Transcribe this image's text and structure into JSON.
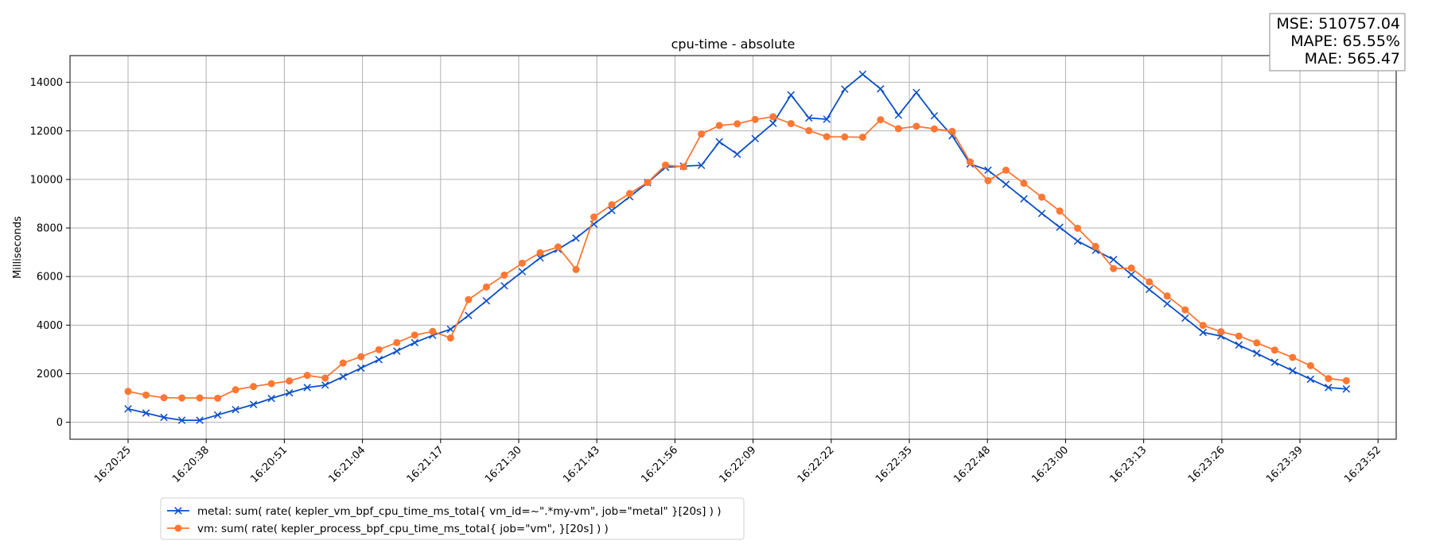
{
  "chart_data": {
    "type": "line",
    "title": "cpu-time - absolute",
    "xlabel": "",
    "ylabel": "Milliseconds",
    "ylim": [
      -700,
      15100
    ],
    "yticks": [
      0,
      2000,
      4000,
      6000,
      8000,
      10000,
      12000,
      14000
    ],
    "xtick_labels": [
      "16:20:25",
      "16:20:38",
      "16:20:51",
      "16:21:04",
      "16:21:17",
      "16:21:30",
      "16:21:43",
      "16:21:56",
      "16:22:09",
      "16:22:22",
      "16:22:35",
      "16:22:48",
      "16:23:00",
      "16:23:13",
      "16:23:26",
      "16:23:39",
      "16:23:52"
    ],
    "grid": true,
    "legend_position": "bottom-left",
    "metrics_box": [
      "MSE: 510757.04",
      "MAPE: 65.55%",
      "MAE: 565.47"
    ],
    "series": [
      {
        "name": "metal: sum( rate( kepler_vm_bpf_cpu_time_ms_total{ vm_id=~\".*my-vm\", job=\"metal\" }[20s] ) )",
        "color": "#0b4fc6",
        "marker": "x",
        "values": [
          550,
          380,
          200,
          80,
          80,
          300,
          520,
          730,
          980,
          1210,
          1430,
          1530,
          1880,
          2230,
          2580,
          2930,
          3280,
          3580,
          3830,
          4400,
          5000,
          5620,
          6200,
          6770,
          7120,
          7580,
          8160,
          8720,
          9290,
          9870,
          10500,
          10550,
          10580,
          11550,
          11040,
          11680,
          12310,
          13480,
          12530,
          12480,
          13720,
          14330,
          13730,
          12650,
          13580,
          12620,
          11800,
          10640,
          10380,
          9800,
          9200,
          8600,
          8030,
          7460,
          7080,
          6700,
          6080,
          5470,
          4880,
          4290,
          3700,
          3550,
          3180,
          2840,
          2470,
          2120,
          1770,
          1430,
          1370
        ]
      },
      {
        "name": "vm: sum( rate( kepler_process_bpf_cpu_time_ms_total{ job=\"vm\", }[20s] ) )",
        "color": "#ff7733",
        "marker": "o",
        "values": [
          1270,
          1120,
          1010,
          1000,
          1000,
          990,
          1340,
          1470,
          1590,
          1700,
          1930,
          1820,
          2440,
          2700,
          2990,
          3280,
          3590,
          3740,
          3470,
          5050,
          5570,
          6060,
          6550,
          6980,
          7220,
          6290,
          8450,
          8960,
          9420,
          9880,
          10590,
          10520,
          11870,
          12220,
          12290,
          12470,
          12580,
          12300,
          12010,
          11760,
          11750,
          11740,
          12460,
          12090,
          12190,
          12080,
          11980,
          10720,
          9950,
          10380,
          9840,
          9270,
          8700,
          7990,
          7240,
          6330,
          6350,
          5780,
          5200,
          4630,
          3990,
          3730,
          3550,
          3270,
          2970,
          2670,
          2330,
          1800,
          1710
        ]
      }
    ]
  }
}
